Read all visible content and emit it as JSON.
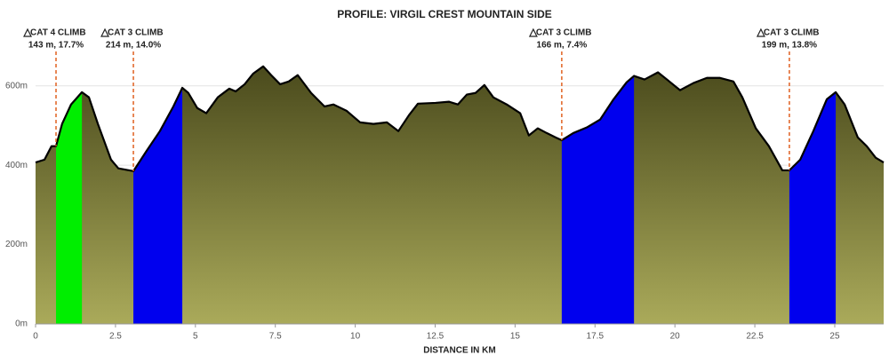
{
  "chart_data": {
    "type": "area",
    "title": "PROFILE: VIRGIL CREST MOUNTAIN SIDE",
    "x_label": "DISTANCE IN KM",
    "x": [
      0,
      0.28,
      0.5,
      0.64,
      0.83,
      1.11,
      1.45,
      1.67,
      1.95,
      2.36,
      2.59,
      3.06,
      3.48,
      3.89,
      4.31,
      4.59,
      4.78,
      5.06,
      5.34,
      5.7,
      6.06,
      6.26,
      6.54,
      6.81,
      7.12,
      7.37,
      7.65,
      7.92,
      8.2,
      8.62,
      9.04,
      9.32,
      9.73,
      10.15,
      10.57,
      10.99,
      11.35,
      11.68,
      11.96,
      12.51,
      12.93,
      13.21,
      13.49,
      13.76,
      14.04,
      14.32,
      14.74,
      15.16,
      15.43,
      15.71,
      15.99,
      16.27,
      16.46,
      16.82,
      17.24,
      17.66,
      18.08,
      18.49,
      18.72,
      19.05,
      19.47,
      19.75,
      20.16,
      20.58,
      21.0,
      21.41,
      21.83,
      22.11,
      22.53,
      22.94,
      23.36,
      23.58,
      23.92,
      24.33,
      24.75,
      25.03,
      25.31,
      25.72,
      26.0,
      26.28,
      26.53
    ],
    "values": [
      407,
      414,
      448,
      448,
      504,
      553,
      584,
      571,
      504,
      414,
      392,
      385,
      437,
      486,
      548,
      595,
      582,
      544,
      531,
      571,
      593,
      586,
      604,
      631,
      649,
      627,
      604,
      611,
      627,
      582,
      548,
      553,
      537,
      508,
      504,
      508,
      486,
      526,
      555,
      557,
      560,
      553,
      578,
      582,
      602,
      571,
      553,
      531,
      475,
      493,
      481,
      470,
      463,
      481,
      495,
      515,
      566,
      609,
      625,
      616,
      634,
      616,
      589,
      607,
      620,
      620,
      611,
      571,
      493,
      448,
      387,
      387,
      414,
      486,
      566,
      584,
      553,
      470,
      448,
      419,
      407
    ],
    "line_color": "#000000",
    "area_gradient": [
      "#4a4a1c",
      "#aaaa5a"
    ],
    "xlim": [
      0,
      26.53
    ],
    "ylim": [
      0,
      700
    ],
    "xticks": [
      0,
      2.5,
      5,
      7.5,
      10,
      12.5,
      15,
      17.5,
      20,
      22.5,
      25
    ],
    "yticks": [
      {
        "value": 0,
        "label": "0m"
      },
      {
        "value": 200,
        "label": "200m"
      },
      {
        "value": 400,
        "label": "400m"
      },
      {
        "value": 600,
        "label": "600m"
      }
    ],
    "grid": true,
    "climbs": [
      {
        "start": 0.64,
        "end": 1.45,
        "color": "#00ee00",
        "category": "CAT 4 CLIMB",
        "detail": "143 m, 17.7%"
      },
      {
        "start": 3.06,
        "end": 4.59,
        "color": "#0000ee",
        "category": "CAT 3 CLIMB",
        "detail": "214 m, 14.0%"
      },
      {
        "start": 16.46,
        "end": 18.72,
        "color": "#0000ee",
        "category": "CAT 3 CLIMB",
        "detail": "166 m, 7.4%"
      },
      {
        "start": 23.58,
        "end": 25.03,
        "color": "#0000ee",
        "category": "CAT 3 CLIMB",
        "detail": "199 m, 13.8%"
      }
    ],
    "climb_marker_color": "#e06020"
  }
}
